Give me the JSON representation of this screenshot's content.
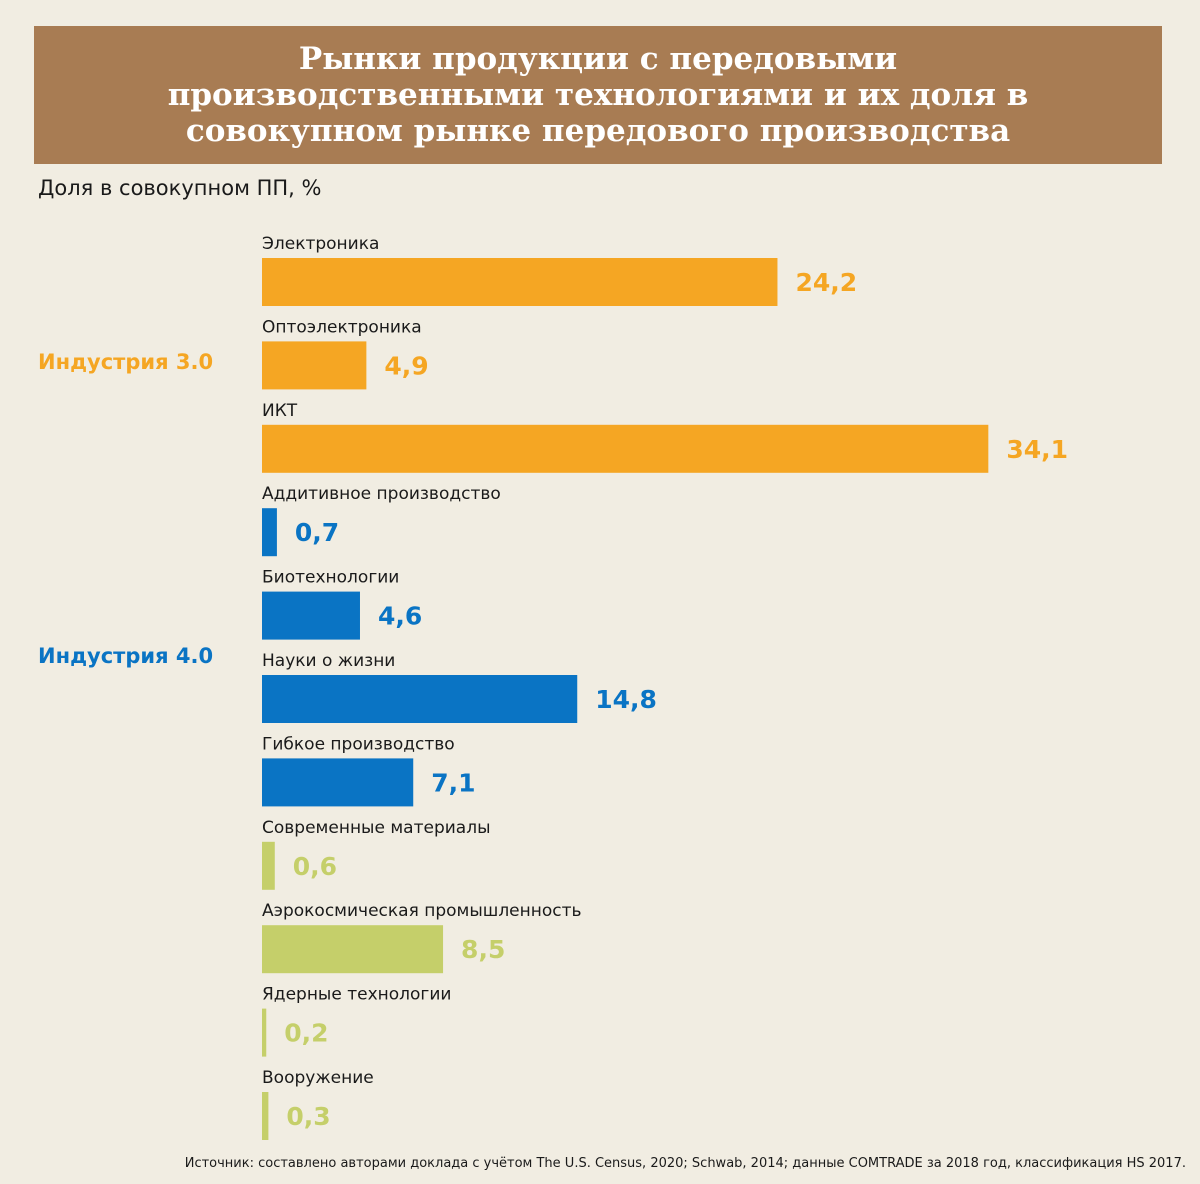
{
  "title": "Рынки продукции с передовыми производственными технологиями и их доля в совокупном рынке передового производства",
  "source": "Источник: составлено авторами доклада с учётом The U.S. Census, 2020; Schwab, 2014; данные COMTRADE за 2018 год, классификация HS 2017.",
  "colors": {
    "orange": "#f5a623",
    "blue": "#0a74c4",
    "green": "#c5cf6a",
    "banner": "#a87c53",
    "background": "#f1ede2"
  },
  "chart_data": {
    "type": "bar",
    "orientation": "horizontal",
    "ylabel": "Доля в совокупном ПП, %",
    "groups": [
      {
        "label": "Индустрия 3.0",
        "color": "#f5a623"
      },
      {
        "label": "Индустрия 4.0",
        "color": "#0a74c4"
      }
    ],
    "categories": [
      {
        "label": "Электроника",
        "value": 24.2,
        "display": "24,2",
        "color": "#f5a623"
      },
      {
        "label": "Оптоэлектроника",
        "value": 4.9,
        "display": "4,9",
        "color": "#f5a623"
      },
      {
        "label": "ИКТ",
        "value": 34.1,
        "display": "34,1",
        "color": "#f5a623"
      },
      {
        "label": "Аддитивное производство",
        "value": 0.7,
        "display": "0,7",
        "color": "#0a74c4"
      },
      {
        "label": "Биотехнологии",
        "value": 4.6,
        "display": "4,6",
        "color": "#0a74c4"
      },
      {
        "label": "Науки о жизни",
        "value": 14.8,
        "display": "14,8",
        "color": "#0a74c4"
      },
      {
        "label": "Гибкое производство",
        "value": 7.1,
        "display": "7,1",
        "color": "#0a74c4"
      },
      {
        "label": "Современные материалы",
        "value": 0.6,
        "display": "0,6",
        "color": "#c5cf6a"
      },
      {
        "label": "Аэрокосмическая промышленность",
        "value": 8.5,
        "display": "8,5",
        "color": "#c5cf6a"
      },
      {
        "label": "Ядерные технологии",
        "value": 0.2,
        "display": "0,2",
        "color": "#c5cf6a"
      },
      {
        "label": "Вооружение",
        "value": 0.3,
        "display": "0,3",
        "color": "#c5cf6a"
      }
    ]
  }
}
